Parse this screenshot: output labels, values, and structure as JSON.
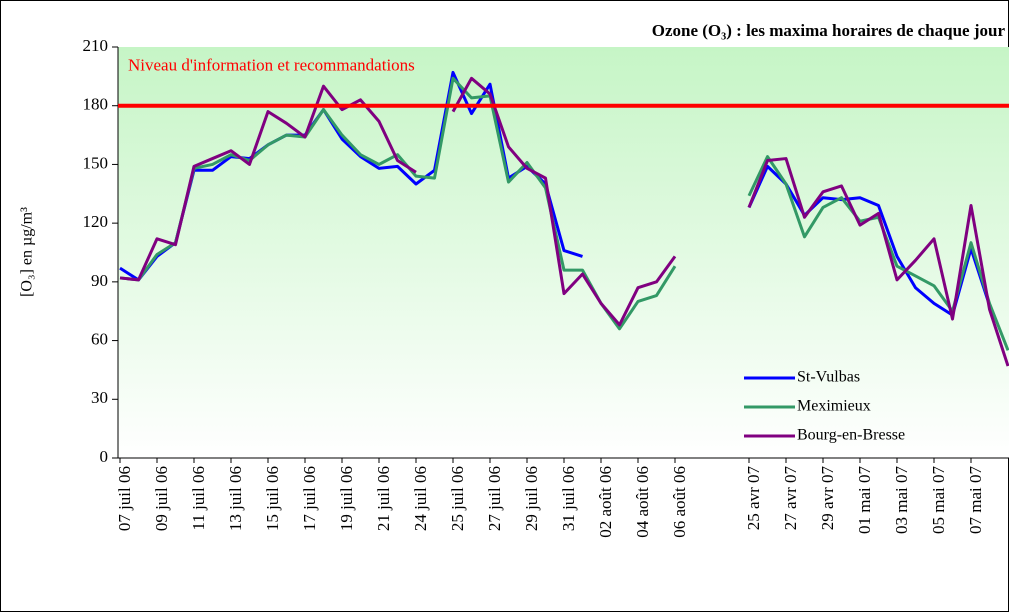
{
  "chart_data": {
    "type": "line",
    "title": "Ozone (O₃) : les maxima horaires de chaque jour",
    "y_label": "[O₃] en µg/m³",
    "categories": [
      "07 juil 06",
      null,
      "09 juil 06",
      null,
      "11 juil 06",
      null,
      "13 juil 06",
      null,
      "15 juil 06",
      null,
      "17 juil 06",
      null,
      "19 juil 06",
      null,
      "21 juil 06",
      null,
      "24 juil 06",
      null,
      "25 juil 06",
      null,
      "27 juil 06",
      null,
      "29 juil 06",
      null,
      "31 juil 06",
      null,
      "02 août 06",
      null,
      "04 août 06",
      null,
      "06 août 06",
      null,
      null,
      null,
      "25 avr 07",
      null,
      "27 avr 07",
      null,
      "29 avr 07",
      null,
      "01 mai 07",
      null,
      "03 mai 07",
      null,
      "05 mai 07",
      null,
      "07 mai 07",
      null,
      null
    ],
    "series": [
      {
        "name": "St-Vulbas",
        "color": "#0000ff",
        "values": [
          97,
          91,
          103,
          110,
          147,
          147,
          154,
          153,
          160,
          165,
          165,
          178,
          163,
          154,
          148,
          149,
          140,
          147,
          197,
          176,
          191,
          143,
          149,
          140,
          106,
          103,
          null,
          null,
          null,
          null,
          null,
          null,
          null,
          null,
          128,
          149,
          140,
          124,
          133,
          132,
          133,
          129,
          103,
          87,
          79,
          73,
          107,
          78,
          null
        ]
      },
      {
        "name": "Meximieux",
        "color": "#339966",
        "values": [
          92,
          91,
          104,
          110,
          148,
          150,
          155,
          152,
          160,
          165,
          164,
          178,
          165,
          155,
          150,
          155,
          144,
          143,
          194,
          184,
          185,
          141,
          151,
          138,
          96,
          96,
          79,
          66,
          80,
          83,
          98,
          null,
          null,
          null,
          134,
          154,
          140,
          113,
          128,
          133,
          121,
          123,
          98,
          93,
          88,
          75,
          110,
          79,
          55
        ]
      },
      {
        "name": "Bourg-en-Bresse",
        "color": "#800080",
        "values": [
          92,
          91,
          112,
          109,
          149,
          153,
          157,
          150,
          177,
          171,
          164,
          190,
          178,
          183,
          172,
          152,
          146,
          null,
          177,
          194,
          186,
          159,
          148,
          143,
          84,
          94,
          79,
          68,
          87,
          90,
          103,
          null,
          null,
          null,
          128,
          152,
          153,
          123,
          136,
          139,
          119,
          125,
          91,
          101,
          112,
          71,
          129,
          76,
          47
        ]
      }
    ],
    "threshold": {
      "value": 180,
      "label": "Niveau d'information et recommandations",
      "color": "#ff0000"
    },
    "ylim": [
      0,
      210
    ],
    "yticks": [
      0,
      30,
      60,
      90,
      120,
      150,
      180,
      210
    ],
    "grid": false,
    "legend": "lower right"
  }
}
